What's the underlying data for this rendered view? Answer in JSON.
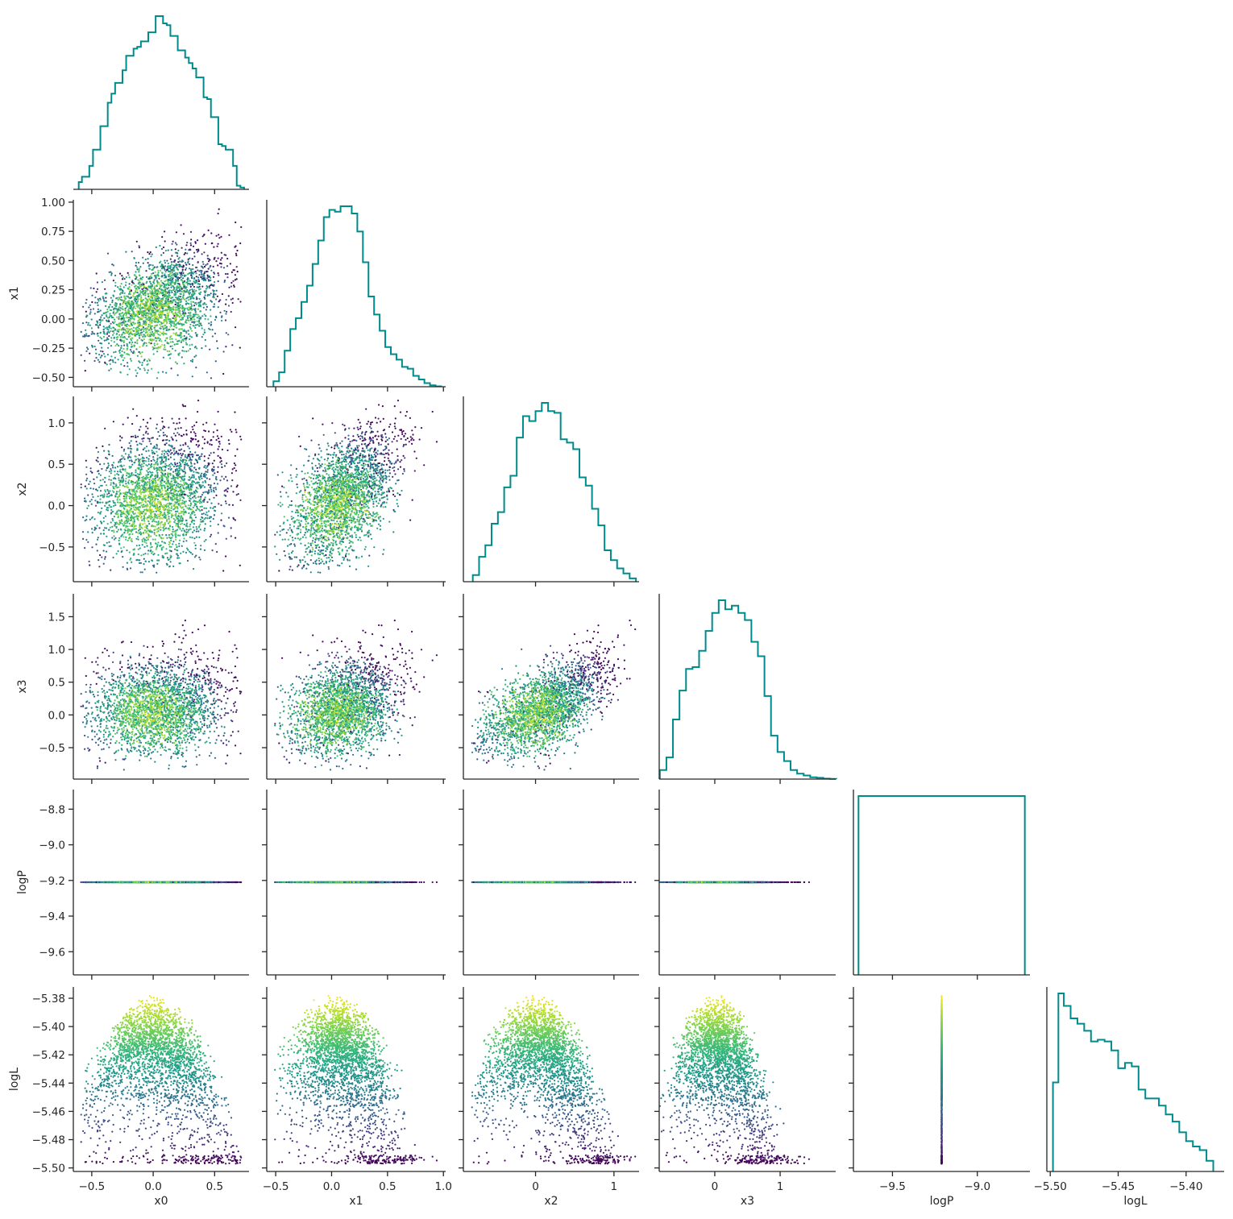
{
  "chart_data": {
    "type": "scatter",
    "description_kind": "corner-plot",
    "parameters": [
      "x0",
      "x1",
      "x2",
      "x3",
      "logP",
      "logL"
    ],
    "diagonal": "histogram (step)",
    "off_diagonal": "scatter colored by logL",
    "colormap": "viridis",
    "colors": {
      "histogram": "#008b8b",
      "spine": "#262626"
    },
    "axes": {
      "x0": {
        "lim": [
          -0.65,
          0.78
        ],
        "ticks": [
          -0.5,
          0.0,
          0.5
        ],
        "tick_labels": [
          "−0.5",
          "0.0",
          "0.5"
        ]
      },
      "x1": {
        "lim": [
          -0.58,
          1.02
        ],
        "ticks": [
          -0.5,
          0.0,
          0.5,
          1.0
        ],
        "tick_labels": [
          "−0.5",
          "0.0",
          "0.5",
          "1.0"
        ]
      },
      "x1_y": {
        "lim": [
          -0.58,
          1.02
        ],
        "ticks": [
          -0.5,
          -0.25,
          0.0,
          0.25,
          0.5,
          0.75,
          1.0
        ],
        "tick_labels": [
          "−0.50",
          "−0.25",
          "0.00",
          "0.25",
          "0.50",
          "0.75",
          "1.00"
        ]
      },
      "x2": {
        "lim": [
          -0.92,
          1.32
        ],
        "ticks": [
          0,
          1
        ],
        "tick_labels": [
          "0",
          "1"
        ]
      },
      "x2_y": {
        "lim": [
          -0.92,
          1.32
        ],
        "ticks": [
          -0.5,
          0.0,
          0.5,
          1.0
        ],
        "tick_labels": [
          "−0.5",
          "0.0",
          "0.5",
          "1.0"
        ]
      },
      "x3": {
        "lim": [
          -0.85,
          1.85
        ],
        "ticks": [
          0,
          1
        ],
        "tick_labels": [
          "0",
          "1"
        ]
      },
      "x3_y": {
        "lim": [
          -0.98,
          1.85
        ],
        "ticks": [
          -0.5,
          0.0,
          0.5,
          1.0,
          1.5
        ],
        "tick_labels": [
          "−0.5",
          "0.0",
          "0.5",
          "1.0",
          "1.5"
        ]
      },
      "logP": {
        "lim": [
          -9.73,
          -8.69
        ],
        "ticks": [
          -9.5,
          -9.0
        ],
        "tick_labels": [
          "−9.5",
          "−9.0"
        ]
      },
      "logP_y": {
        "lim": [
          -9.73,
          -8.69
        ],
        "ticks": [
          -9.6,
          -9.4,
          -9.2,
          -9.0,
          -8.8
        ],
        "tick_labels": [
          "−9.6",
          "−9.4",
          "−9.2",
          "−9.0",
          "−8.8"
        ]
      },
      "logL": {
        "lim": [
          -5.5025,
          -5.372
        ],
        "ticks": [
          -5.5,
          -5.45,
          -5.4
        ],
        "tick_labels": [
          "−5.50",
          "−5.45",
          "−5.40"
        ]
      },
      "logL_y": {
        "lim": [
          -5.5025,
          -5.372
        ],
        "ticks": [
          -5.5,
          -5.48,
          -5.46,
          -5.44,
          -5.42,
          -5.4,
          -5.38
        ],
        "tick_labels": [
          "−5.50",
          "−5.48",
          "−5.46",
          "−5.44",
          "−5.42",
          "−5.40",
          "−5.38"
        ]
      }
    },
    "logP_constant_value": -9.21,
    "histograms": {
      "x0": {
        "edges": [
          -0.606,
          -0.58,
          -0.55,
          -0.52,
          -0.49,
          -0.46,
          -0.43,
          -0.4,
          -0.37,
          -0.34,
          -0.31,
          -0.28,
          -0.25,
          -0.22,
          -0.19,
          -0.16,
          -0.13,
          -0.1,
          -0.07,
          -0.04,
          -0.01,
          0.02,
          0.05,
          0.08,
          0.11,
          0.14,
          0.17,
          0.2,
          0.23,
          0.26,
          0.29,
          0.32,
          0.35,
          0.38,
          0.41,
          0.44,
          0.47,
          0.5,
          0.53,
          0.56,
          0.59,
          0.62,
          0.65,
          0.68,
          0.71,
          0.74
        ],
        "counts": [
          4,
          7,
          7,
          13,
          22,
          22,
          35,
          35,
          48,
          53,
          59,
          59,
          66,
          74,
          74,
          78,
          79,
          82,
          82,
          87,
          87,
          96,
          96,
          92,
          91,
          85,
          85,
          77,
          77,
          73,
          70,
          67,
          62,
          62,
          51,
          50,
          40,
          40,
          25,
          24,
          22,
          22,
          13,
          2,
          1
        ]
      },
      "x1": {
        "edges": [
          -0.52,
          -0.47,
          -0.42,
          -0.37,
          -0.32,
          -0.27,
          -0.22,
          -0.17,
          -0.12,
          -0.07,
          -0.02,
          0.03,
          0.08,
          0.13,
          0.18,
          0.23,
          0.28,
          0.33,
          0.38,
          0.43,
          0.48,
          0.53,
          0.58,
          0.63,
          0.68,
          0.73,
          0.78,
          0.83,
          0.88,
          0.93,
          0.98
        ],
        "counts": [
          3,
          8,
          20,
          32,
          38,
          47,
          56,
          68,
          81,
          94,
          98,
          97,
          100,
          100,
          96,
          86,
          69,
          50,
          40,
          31,
          22,
          18,
          15,
          11,
          10,
          6,
          4,
          2,
          0.8,
          0.2
        ]
      },
      "x2": {
        "edges": [
          -0.8,
          -0.72,
          -0.64,
          -0.56,
          -0.48,
          -0.4,
          -0.32,
          -0.24,
          -0.16,
          -0.08,
          0.0,
          0.08,
          0.16,
          0.24,
          0.32,
          0.4,
          0.48,
          0.56,
          0.64,
          0.72,
          0.8,
          0.88,
          0.96,
          1.04,
          1.12,
          1.2,
          1.28
        ],
        "counts": [
          4,
          15,
          22,
          35,
          42,
          57,
          64,
          87,
          100,
          97,
          103,
          108,
          103,
          102,
          86,
          84,
          80,
          63,
          58,
          44,
          34,
          19,
          13,
          8,
          5,
          2
        ]
      },
      "x3": {
        "edges": [
          -0.84,
          -0.74,
          -0.64,
          -0.54,
          -0.44,
          -0.34,
          -0.24,
          -0.14,
          -0.04,
          0.06,
          0.16,
          0.26,
          0.36,
          0.46,
          0.56,
          0.66,
          0.76,
          0.86,
          0.96,
          1.06,
          1.16,
          1.26,
          1.36,
          1.46,
          1.56,
          1.66,
          1.76,
          1.86
        ],
        "counts": [
          5,
          12,
          33,
          49,
          61,
          62,
          71,
          82,
          92,
          99,
          94,
          96,
          92,
          88,
          76,
          68,
          46,
          24,
          15,
          10,
          5,
          3,
          2,
          1,
          0.7,
          0.3,
          0.1
        ]
      },
      "logP": {
        "edges": [
          -9.7,
          -8.72
        ],
        "counts": [
          100
        ]
      },
      "logL": {
        "edges": [
          -5.498,
          -5.494,
          -5.49,
          -5.485,
          -5.48,
          -5.475,
          -5.47,
          -5.465,
          -5.46,
          -5.455,
          -5.45,
          -5.445,
          -5.44,
          -5.435,
          -5.43,
          -5.425,
          -5.42,
          -5.415,
          -5.41,
          -5.405,
          -5.4,
          -5.395,
          -5.39,
          -5.385,
          -5.38
        ],
        "counts": [
          50,
          100,
          93,
          86,
          83,
          79,
          73,
          74,
          73,
          68,
          58,
          61,
          59,
          46,
          41,
          41,
          37,
          32,
          28,
          22,
          17,
          14,
          12,
          6
        ]
      }
    },
    "scatter_model": {
      "note": "correlated sample cloud; x1,x2,x3 spread widens with x0 / each other; logL peaks near origin",
      "n_points": 2600
    }
  }
}
